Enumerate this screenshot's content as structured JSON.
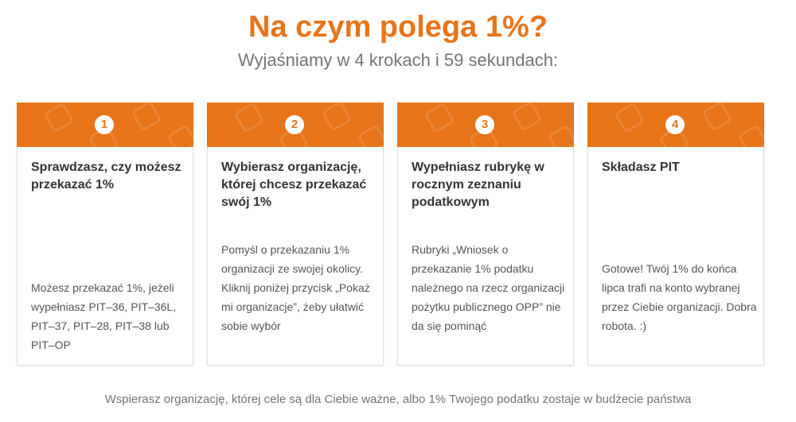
{
  "header": {
    "title": "Na czym polega 1%?",
    "subtitle": "Wyjaśniamy w 4 krokach i 59 sekundach:"
  },
  "steps": [
    {
      "number": "1",
      "title": "Sprawdzasz, czy możesz przekazać 1%",
      "text": "Możesz przekazać 1%, jeżeli wypełniasz PIT–36, PIT–36L, PIT–37, PIT–28, PIT–38 lub PIT–OP"
    },
    {
      "number": "2",
      "title": "Wybierasz organizację, której chcesz przekazać swój 1%",
      "text": "Pomyśl o przekazaniu 1% organizacji ze swojej okolicy. Kliknij poniżej przycisk „Pokaż mi organizacje”, żeby ułatwić sobie wybór"
    },
    {
      "number": "3",
      "title": "Wypełniasz rubrykę w rocznym zeznaniu podatkowym",
      "text": "Rubryki „Wniosek o przekazanie 1% podatku należnego na rzecz organizacji pożytku publicznego OPP” nie da się pominąć"
    },
    {
      "number": "4",
      "title": "Składasz PIT",
      "text": "Gotowe! Twój 1% do końca lipca trafi na konto wybranej przez Ciebie organizacji. Dobra robota. :)"
    }
  ],
  "footer": {
    "text": "Wspierasz organizację, której cele są dla Ciebie ważne, albo 1% Twojego podatku zostaje w budżecie państwa"
  },
  "colors": {
    "accent": "#e8741a",
    "card_border": "#dedede",
    "title_text": "#333333",
    "body_text": "#555555",
    "muted_text": "#747474"
  }
}
